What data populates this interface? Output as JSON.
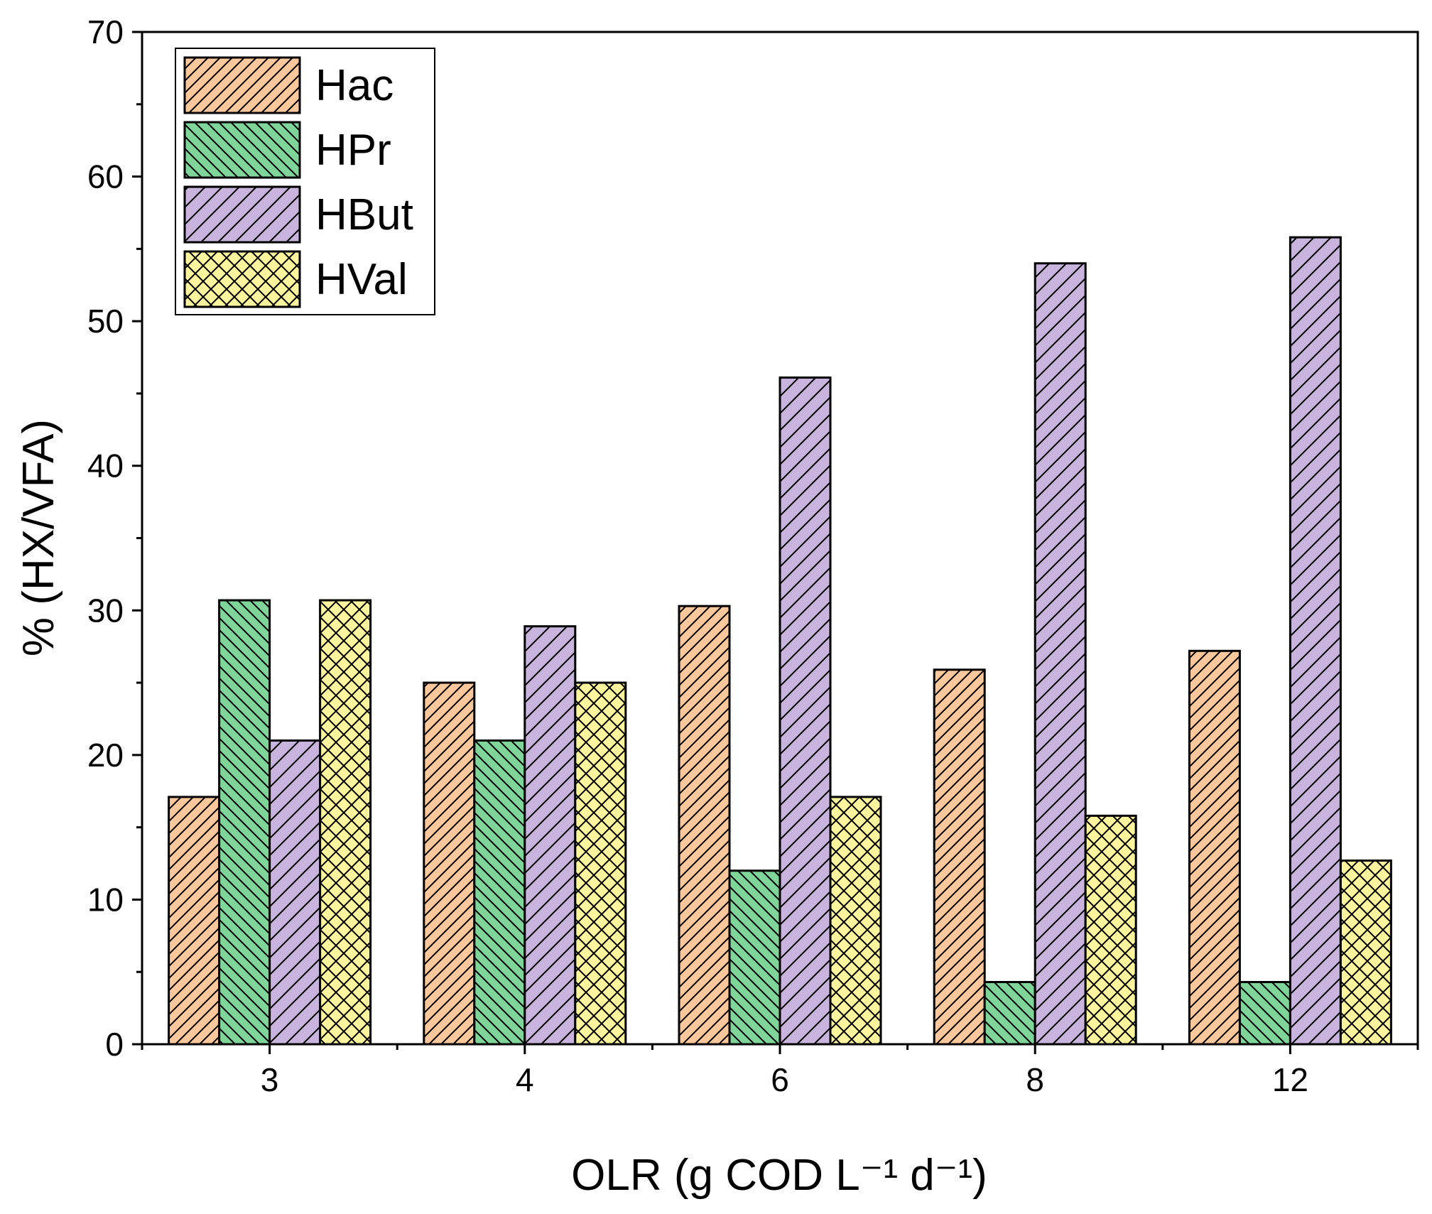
{
  "chart_data": {
    "type": "bar",
    "title": "",
    "xlabel": "OLR (g COD L⁻¹ d⁻¹)",
    "ylabel": "% (HX/VFA)",
    "categories": [
      "3",
      "4",
      "6",
      "8",
      "12"
    ],
    "ylim": [
      0,
      70
    ],
    "yticks": [
      "0",
      "10",
      "20",
      "30",
      "40",
      "50",
      "60",
      "70"
    ],
    "legend_position": "top-left",
    "series": [
      {
        "name": "Hac",
        "values": [
          17.1,
          25.0,
          30.3,
          25.9,
          27.2
        ],
        "color": "#ffc89c",
        "pattern": "hatch-fwd"
      },
      {
        "name": "HPr",
        "values": [
          30.7,
          21.0,
          12.0,
          4.3,
          4.3
        ],
        "color": "#7fd499",
        "pattern": "hatch-back"
      },
      {
        "name": "HBut",
        "values": [
          21.0,
          28.9,
          46.1,
          54.0,
          55.8
        ],
        "color": "#c8b4dc",
        "pattern": "hatch-fwd-sparse"
      },
      {
        "name": "HVal",
        "values": [
          30.7,
          25.0,
          17.1,
          15.8,
          12.7
        ],
        "color": "#fdf59e",
        "pattern": "crosshatch"
      }
    ]
  }
}
